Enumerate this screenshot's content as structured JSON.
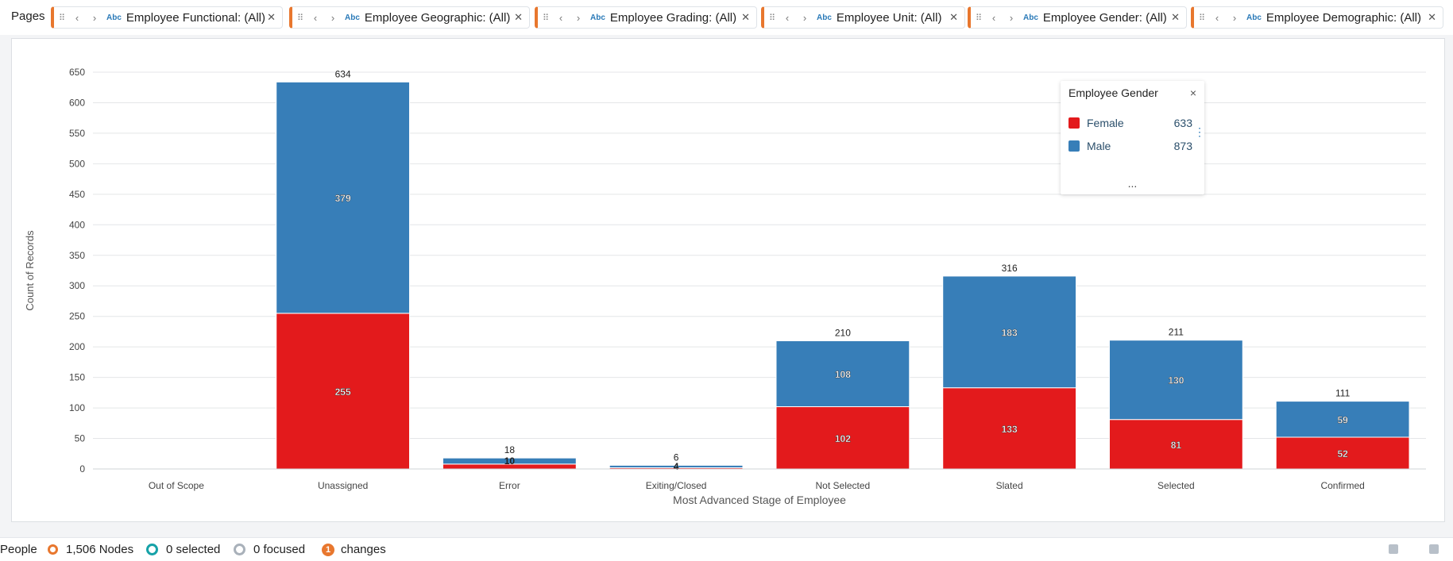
{
  "pages_bar": {
    "label": "Pages",
    "filters": [
      {
        "title": "Employee Functional: (All)",
        "type_badge": "Abc"
      },
      {
        "title": "Employee Geographic: (All)",
        "type_badge": "Abc"
      },
      {
        "title": "Employee Grading: (All)",
        "type_badge": "Abc"
      },
      {
        "title": "Employee Unit: (All)",
        "type_badge": "Abc"
      },
      {
        "title": "Employee Gender: (All)",
        "type_badge": "Abc"
      },
      {
        "title": "Employee Demographic: (All)",
        "type_badge": "Abc"
      }
    ],
    "icons": {
      "grip": "grip-icon",
      "prev": "chevron-left-icon",
      "next": "chevron-right-icon",
      "close": "close-icon"
    }
  },
  "legend": {
    "title": "Employee Gender",
    "close": "×",
    "more": "...",
    "items": [
      {
        "name": "Female",
        "value": "633",
        "color": "#e31a1c"
      },
      {
        "name": "Male",
        "value": "873",
        "color": "#377eb8"
      }
    ]
  },
  "status_bar": {
    "people_label": "People",
    "nodes_label": "1,506 Nodes",
    "selected_label": "0 selected",
    "focused_label": "0 focused",
    "changes_badge": "1",
    "changes_label": "changes"
  },
  "chart_data": {
    "type": "bar",
    "stacked": true,
    "xlabel": "Most Advanced Stage of Employee",
    "ylabel": "Count of Records",
    "ylim": [
      0,
      650
    ],
    "yticks": [
      0,
      50,
      100,
      150,
      200,
      250,
      300,
      350,
      400,
      450,
      500,
      550,
      600,
      650
    ],
    "grid": true,
    "legend_position": "top-right",
    "categories": [
      "Out of Scope",
      "Unassigned",
      "Error",
      "Exiting/Closed",
      "Not Selected",
      "Slated",
      "Selected",
      "Confirmed"
    ],
    "series": [
      {
        "name": "Female",
        "color": "#e31a1c",
        "values": [
          0,
          255,
          8,
          2,
          102,
          133,
          81,
          52
        ],
        "labels": [
          "",
          "255",
          "",
          "",
          "102",
          "133",
          "81",
          "52"
        ]
      },
      {
        "name": "Male",
        "color": "#377eb8",
        "values": [
          0,
          379,
          10,
          4,
          108,
          183,
          130,
          59
        ],
        "labels": [
          "",
          "379",
          "10",
          "4",
          "108",
          "183",
          "130",
          "59"
        ]
      }
    ],
    "totals": [
      "",
      "634",
      "18",
      "6",
      "210",
      "316",
      "211",
      "111"
    ]
  }
}
